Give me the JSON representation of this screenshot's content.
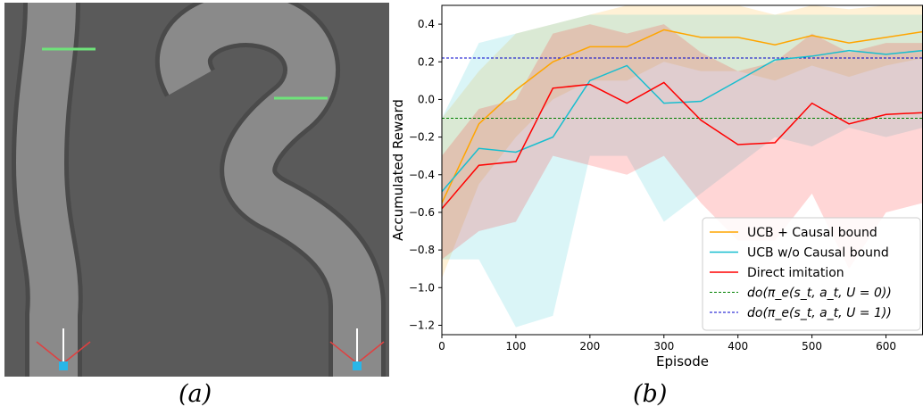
{
  "panels": {
    "a": {
      "caption": "(a)"
    },
    "b": {
      "caption": "(b)"
    }
  },
  "colors": {
    "ucb_causal": "#ffa500",
    "ucb_wo": "#17becf",
    "direct": "#ff0000",
    "do_u0": "#008000",
    "do_u1": "#0000cd",
    "sim_ground": "#5a5a5a",
    "sim_road": "#8a8a8a",
    "sim_marker": "#6fe37a",
    "sim_car": "#29b6e8"
  },
  "chart_data": {
    "type": "line",
    "xlabel": "Episode",
    "ylabel": "Accumulated Reward",
    "xlim": [
      0,
      650
    ],
    "ylim": [
      -1.25,
      0.5
    ],
    "xticks": [
      0,
      100,
      200,
      300,
      400,
      500,
      600
    ],
    "yticks": [
      -1.2,
      -1.0,
      -0.8,
      -0.6,
      -0.4,
      -0.2,
      0.0,
      0.2,
      0.4
    ],
    "ytick_labels": [
      "−1.2",
      "−1.0",
      "−0.8",
      "−0.6",
      "−0.4",
      "−0.2",
      "0.0",
      "0.2",
      "0.4"
    ],
    "grid": false,
    "legend_position": "bottom-right",
    "x": [
      0,
      50,
      100,
      150,
      200,
      250,
      300,
      350,
      400,
      450,
      500,
      550,
      600,
      650
    ],
    "series": [
      {
        "name": "UCB + Causal bound",
        "color": "#ffa500",
        "values": [
          -0.55,
          -0.13,
          0.05,
          0.2,
          0.28,
          0.28,
          0.37,
          0.33,
          0.33,
          0.29,
          0.34,
          0.3,
          0.33,
          0.36
        ],
        "lower": [
          -0.95,
          -0.45,
          -0.2,
          0.0,
          0.1,
          0.1,
          0.2,
          0.15,
          0.15,
          0.1,
          0.18,
          0.12,
          0.18,
          0.22
        ],
        "upper": [
          -0.1,
          0.15,
          0.35,
          0.4,
          0.45,
          0.5,
          0.5,
          0.5,
          0.5,
          0.45,
          0.5,
          0.48,
          0.5,
          0.5
        ]
      },
      {
        "name": "UCB w/o Causal bound",
        "color": "#17becf",
        "values": [
          -0.49,
          -0.26,
          -0.28,
          -0.2,
          0.1,
          0.18,
          -0.02,
          -0.01,
          0.1,
          0.21,
          0.23,
          0.26,
          0.24,
          0.26
        ],
        "lower": [
          -0.85,
          -0.85,
          -1.21,
          -1.15,
          -0.3,
          -0.3,
          -0.65,
          -0.5,
          -0.35,
          -0.2,
          -0.25,
          -0.15,
          -0.2,
          -0.15
        ],
        "upper": [
          -0.1,
          0.3,
          0.35,
          0.4,
          0.45,
          0.45,
          0.45,
          0.45,
          0.45,
          0.45,
          0.45,
          0.45,
          0.45,
          0.45
        ]
      },
      {
        "name": "Direct imitation",
        "color": "#ff0000",
        "values": [
          -0.58,
          -0.35,
          -0.33,
          0.06,
          0.08,
          -0.02,
          0.09,
          -0.11,
          -0.24,
          -0.23,
          -0.02,
          -0.13,
          -0.08,
          -0.07
        ],
        "lower": [
          -0.85,
          -0.7,
          -0.65,
          -0.3,
          -0.35,
          -0.4,
          -0.3,
          -0.55,
          -0.75,
          -0.75,
          -0.5,
          -0.9,
          -0.6,
          -0.55
        ],
        "upper": [
          -0.3,
          -0.05,
          0.0,
          0.35,
          0.4,
          0.35,
          0.4,
          0.25,
          0.15,
          0.2,
          0.35,
          0.25,
          0.3,
          0.3
        ]
      },
      {
        "name": "do(π_e(s_t, a_t, U = 0))",
        "color": "#008000",
        "style": "dashed",
        "constant": -0.1
      },
      {
        "name": "do(π_e(s_t, a_t, U = 1))",
        "color": "#0000cd",
        "style": "dashed",
        "constant": 0.22
      }
    ]
  }
}
